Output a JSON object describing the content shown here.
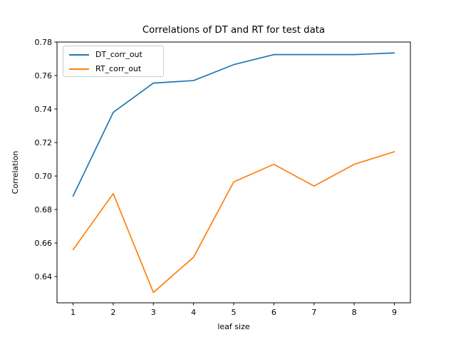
{
  "chart_data": {
    "type": "line",
    "title": "Correlations of DT and RT for test data",
    "xlabel": "leaf size",
    "ylabel": "Correlation",
    "x": [
      1,
      2,
      3,
      4,
      5,
      6,
      7,
      8,
      9
    ],
    "series": [
      {
        "name": "DT_corr_out",
        "color": "#1f77b4",
        "values": [
          0.688,
          0.738,
          0.7555,
          0.757,
          0.7665,
          0.7725,
          0.7725,
          0.7725,
          0.7735
        ]
      },
      {
        "name": "RT_corr_out",
        "color": "#ff7f0e",
        "values": [
          0.656,
          0.6895,
          0.6305,
          0.6515,
          0.6965,
          0.707,
          0.694,
          0.707,
          0.7145
        ]
      }
    ],
    "xlim": [
      0.6,
      9.4
    ],
    "ylim": [
      0.6243,
      0.78
    ],
    "x_ticks": [
      "1",
      "2",
      "3",
      "4",
      "5",
      "6",
      "7",
      "8",
      "9"
    ],
    "y_ticks": [
      "0.64",
      "0.66",
      "0.68",
      "0.70",
      "0.72",
      "0.74",
      "0.76",
      "0.78"
    ],
    "grid": false,
    "legend_position": "upper left",
    "frame_color": "#000000",
    "background": "#ffffff"
  }
}
